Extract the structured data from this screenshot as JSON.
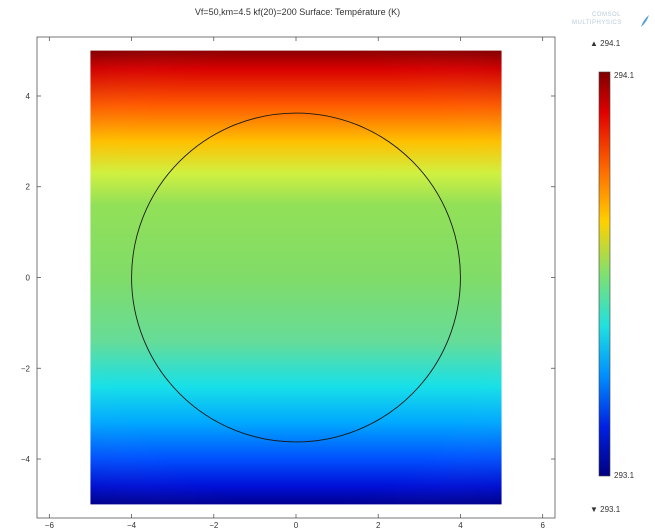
{
  "title": "Vf=50,km=4.5 kf(20)=200  Surface: Température (K)",
  "logo": {
    "line1": "COMSOL",
    "line2": "MULTIPHYSICS"
  },
  "chart_data": {
    "type": "heatmap",
    "title": "Vf=50,km=4.5 kf(20)=200  Surface: Température (K)",
    "quantity": "Température (K)",
    "xlim": [
      -6.3,
      6.3
    ],
    "ylim": [
      -5.3,
      5.3
    ],
    "x_ticks": [
      -6,
      -4,
      -2,
      0,
      2,
      4,
      6
    ],
    "y_ticks": [
      -4,
      -2,
      0,
      2,
      4
    ],
    "x_tick_labels": [
      "−6",
      "−4",
      "−2",
      "0",
      "2",
      "4",
      "6"
    ],
    "y_tick_labels": [
      "−4",
      "−2",
      "0",
      "2",
      "4"
    ],
    "domain_square": {
      "xmin": -5,
      "xmax": 5,
      "ymin": -5,
      "ymax": 5
    },
    "inclusion_circle": {
      "cx": 0,
      "cy": 0,
      "r": 4
    },
    "color_range": [
      293.1,
      294.1
    ],
    "colormap": "rainbow",
    "colorbar": {
      "max_label": "294.1",
      "min_label": "293.1",
      "max_marker_label": "▲ 294.1",
      "min_marker_label": "▼ 293.1"
    },
    "grid": false,
    "legend_position": "right"
  }
}
